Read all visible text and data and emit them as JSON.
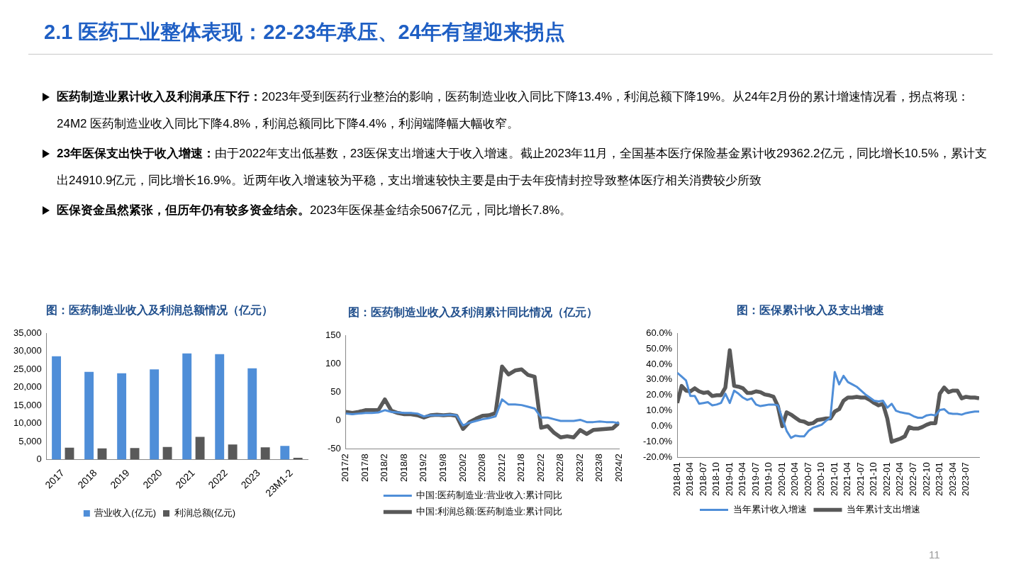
{
  "chart_data": [
    {
      "type": "other",
      "title": "2.1 医药工业整体表现：22-23年承压、24年有望迎来拐点",
      "annotations": [
        "医药制造业累计收入及利润承压下行：",
        "2023年受到医药行业整治的影响，医药制造业收入同比下降13.4%，利润总额下降19%。从24年2月份的累计增速情况看，拐点将现：24M2 医药制造业收入同比下降4.8%，利润总额同比下降4.4%，利润端降幅大幅收窄。",
        "23年医保支出快于收入增速：",
        "由于2022年支出低基数，23医保支出增速大于收入增速。截止2023年11月，全国基本医疗保险基金累计收29362.2亿元，同比增长10.5%，累计支出24910.9亿元，同比增长16.9%。近两年收入增速较为平稳，支出增速较快主要是由于去年疫情封控导致整体医疗相关消费较少所致",
        "医保资金虽然紧张，但历年仍有较多资金结余。",
        "2023年医保基金结余5067亿元，同比增长7.8%。",
        "11"
      ]
    },
    {
      "type": "bar",
      "title": "图：医药制造业收入及利润总额情况（亿元）",
      "categories": [
        "2017",
        "2018",
        "2019",
        "2020",
        "2021",
        "2022",
        "2023",
        "23M1-2"
      ],
      "series": [
        {
          "name": "营业收入(亿元)",
          "color": "#4f8ed8",
          "values": [
            28600,
            24300,
            23900,
            25000,
            29400,
            29200,
            25300,
            3800
          ]
        },
        {
          "name": "利润总额(亿元)",
          "color": "#595959",
          "values": [
            3300,
            3100,
            3200,
            3500,
            6300,
            4200,
            3400,
            500
          ]
        }
      ],
      "ylim": [
        0,
        35000
      ],
      "yticks": [
        {
          "value": 0,
          "label": "0"
        },
        {
          "value": 5000,
          "label": "5,000"
        },
        {
          "value": 10000,
          "label": "10,000"
        },
        {
          "value": 15000,
          "label": "15,000"
        },
        {
          "value": 20000,
          "label": "20,000"
        },
        {
          "value": 25000,
          "label": "25,000"
        },
        {
          "value": 30000,
          "label": "30,000"
        },
        {
          "value": 35000,
          "label": "35,000"
        }
      ],
      "legend": "bottom"
    },
    {
      "type": "line",
      "title": "图：医药制造业收入及利润累计同比情况（亿元）",
      "x": [
        "2017-02",
        "2017-04",
        "2017-06",
        "2017-08",
        "2017-10",
        "2017-12",
        "2018-02",
        "2018-04",
        "2018-06",
        "2018-08",
        "2018-10",
        "2018-12",
        "2019-02",
        "2019-04",
        "2019-06",
        "2019-08",
        "2019-10",
        "2019-12",
        "2020-02",
        "2020-04",
        "2020-06",
        "2020-08",
        "2020-10",
        "2020-12",
        "2021-02",
        "2021-04",
        "2021-06",
        "2021-08",
        "2021-10",
        "2021-12",
        "2022-02",
        "2022-04",
        "2022-06",
        "2022-08",
        "2022-10",
        "2022-12",
        "2023-02",
        "2023-04",
        "2023-06",
        "2023-08",
        "2023-10",
        "2023-12",
        "2024-02"
      ],
      "series": [
        {
          "name": "中国:医药制造业:营业收入:累计同比",
          "color": "#4f8ed8",
          "values": [
            12,
            11,
            12,
            13,
            13,
            14,
            18,
            15,
            14,
            13,
            13,
            12,
            7,
            9,
            9,
            9,
            10,
            9,
            -9,
            -4,
            -1,
            2,
            4,
            7,
            37,
            28,
            28,
            27,
            24,
            21,
            5,
            5,
            2,
            -1,
            -1,
            -1,
            1,
            -3,
            -3,
            -2,
            -3,
            -3,
            -5
          ]
        },
        {
          "name": "中国:利润总额:医药制造业:累计同比",
          "color": "#595959",
          "values": [
            15,
            13,
            15,
            18,
            18,
            18,
            37,
            17,
            13,
            11,
            11,
            9,
            5,
            9,
            10,
            9,
            10,
            8,
            -15,
            -3,
            3,
            8,
            9,
            13,
            95,
            81,
            88,
            90,
            80,
            77,
            -13,
            -10,
            -22,
            -30,
            -28,
            -30,
            -17,
            -24,
            -17,
            -16,
            -15,
            -14,
            -4
          ]
        }
      ],
      "xlim": [
        "2017-02",
        "2024-02"
      ],
      "xticks": [
        {
          "value": "2017-02",
          "label": "2017/2"
        },
        {
          "value": "2017-08",
          "label": "2017/8"
        },
        {
          "value": "2018-02",
          "label": "2018/2"
        },
        {
          "value": "2018-08",
          "label": "2018/8"
        },
        {
          "value": "2019-02",
          "label": "2019/2"
        },
        {
          "value": "2019-08",
          "label": "2019/8"
        },
        {
          "value": "2020-02",
          "label": "2020/2"
        },
        {
          "value": "2020-08",
          "label": "2020/8"
        },
        {
          "value": "2021-02",
          "label": "2021/2"
        },
        {
          "value": "2021-08",
          "label": "2021/8"
        },
        {
          "value": "2022-02",
          "label": "2022/2"
        },
        {
          "value": "2022-08",
          "label": "2022/8"
        },
        {
          "value": "2023-02",
          "label": "2023/2"
        },
        {
          "value": "2023-08",
          "label": "2023/8"
        },
        {
          "value": "2024-02",
          "label": "2024/2"
        }
      ],
      "ylim": [
        -50,
        150
      ],
      "yticks": [
        -50,
        0,
        50,
        100,
        150
      ],
      "legend": "bottom"
    },
    {
      "type": "line",
      "title": "图：医保累计收入及支出增速",
      "x": [
        "2018-01",
        "2018-02",
        "2018-03",
        "2018-04",
        "2018-05",
        "2018-06",
        "2018-07",
        "2018-08",
        "2018-09",
        "2018-10",
        "2018-11",
        "2018-12",
        "2019-01",
        "2019-02",
        "2019-03",
        "2019-04",
        "2019-05",
        "2019-06",
        "2019-07",
        "2019-08",
        "2019-09",
        "2019-10",
        "2019-11",
        "2019-12",
        "2020-01",
        "2020-02",
        "2020-03",
        "2020-04",
        "2020-05",
        "2020-06",
        "2020-07",
        "2020-08",
        "2020-09",
        "2020-10",
        "2020-11",
        "2020-12",
        "2021-01",
        "2021-02",
        "2021-03",
        "2021-04",
        "2021-05",
        "2021-06",
        "2021-07",
        "2021-08",
        "2021-09",
        "2021-10",
        "2021-11",
        "2021-12",
        "2022-01",
        "2022-02",
        "2022-03",
        "2022-04",
        "2022-05",
        "2022-06",
        "2022-07",
        "2022-08",
        "2022-09",
        "2022-10",
        "2022-11",
        "2022-12",
        "2023-01",
        "2023-02",
        "2023-03",
        "2023-04",
        "2023-05",
        "2023-06",
        "2023-07",
        "2023-08",
        "2023-09",
        "2023-10"
      ],
      "series": [
        {
          "name": "当年累计收入增速",
          "color": "#4f8ed8",
          "values": [
            34.5,
            32,
            29.5,
            19.5,
            19.5,
            14.5,
            15,
            15.5,
            13.5,
            14,
            15,
            21,
            15,
            23,
            21,
            18.5,
            17,
            18,
            14,
            13,
            13.5,
            14,
            14,
            13.5,
            5,
            -3,
            -7.5,
            -6,
            -6.5,
            -6.5,
            -3,
            -1,
            0,
            1,
            3.5,
            5.5,
            35,
            27,
            32.5,
            28.5,
            27,
            25.5,
            23,
            20.5,
            18.5,
            16.5,
            16,
            16.5,
            12,
            14.5,
            10,
            9,
            8.5,
            8,
            6.5,
            5.5,
            5.5,
            7,
            7.5,
            7,
            10.5,
            11,
            8.5,
            8,
            8,
            7.5,
            8.5,
            9,
            9.5,
            9.5
          ]
        },
        {
          "name": "当年累计支出增速",
          "color": "#595959",
          "values": [
            15,
            26,
            23,
            22.5,
            24.5,
            22.5,
            21.5,
            22,
            19.5,
            20,
            20,
            25,
            49,
            26,
            25.5,
            24.5,
            21.5,
            21.5,
            22.5,
            22,
            20.5,
            20,
            19,
            13,
            0,
            9,
            7.5,
            5.5,
            3.5,
            3,
            1.5,
            2,
            4,
            4.5,
            5,
            5,
            9.5,
            11,
            16.5,
            18.5,
            18.5,
            19,
            18.5,
            18.5,
            17,
            15,
            13.5,
            14.5,
            5,
            -10,
            -9,
            -8,
            -6.5,
            -0.5,
            -1.5,
            -1.5,
            -0.5,
            1,
            2,
            2,
            21,
            25,
            22,
            23,
            23,
            18,
            19,
            18.5,
            18.5,
            18
          ]
        }
      ],
      "xlim": [
        "2018-01",
        "2023-10"
      ],
      "xticks": [
        "2018-01",
        "2018-04",
        "2018-07",
        "2018-10",
        "2019-01",
        "2019-04",
        "2019-07",
        "2019-10",
        "2020-01",
        "2020-04",
        "2020-07",
        "2020-10",
        "2021-01",
        "2021-04",
        "2021-07",
        "2021-10",
        "2022-01",
        "2022-04",
        "2022-07",
        "2022-10",
        "2023-01",
        "2023-04",
        "2023-07"
      ],
      "ylim": [
        -20,
        60
      ],
      "yticks": [
        {
          "value": -20,
          "label": "-20.0%"
        },
        {
          "value": -10,
          "label": "-10.0%"
        },
        {
          "value": 0,
          "label": "0.0%"
        },
        {
          "value": 10,
          "label": "10.0%"
        },
        {
          "value": 20,
          "label": "20.0%"
        },
        {
          "value": 30,
          "label": "30.0%"
        },
        {
          "value": 40,
          "label": "40.0%"
        },
        {
          "value": 50,
          "label": "50.0%"
        },
        {
          "value": 60,
          "label": "60.0%"
        }
      ],
      "legend": "bottom"
    }
  ]
}
